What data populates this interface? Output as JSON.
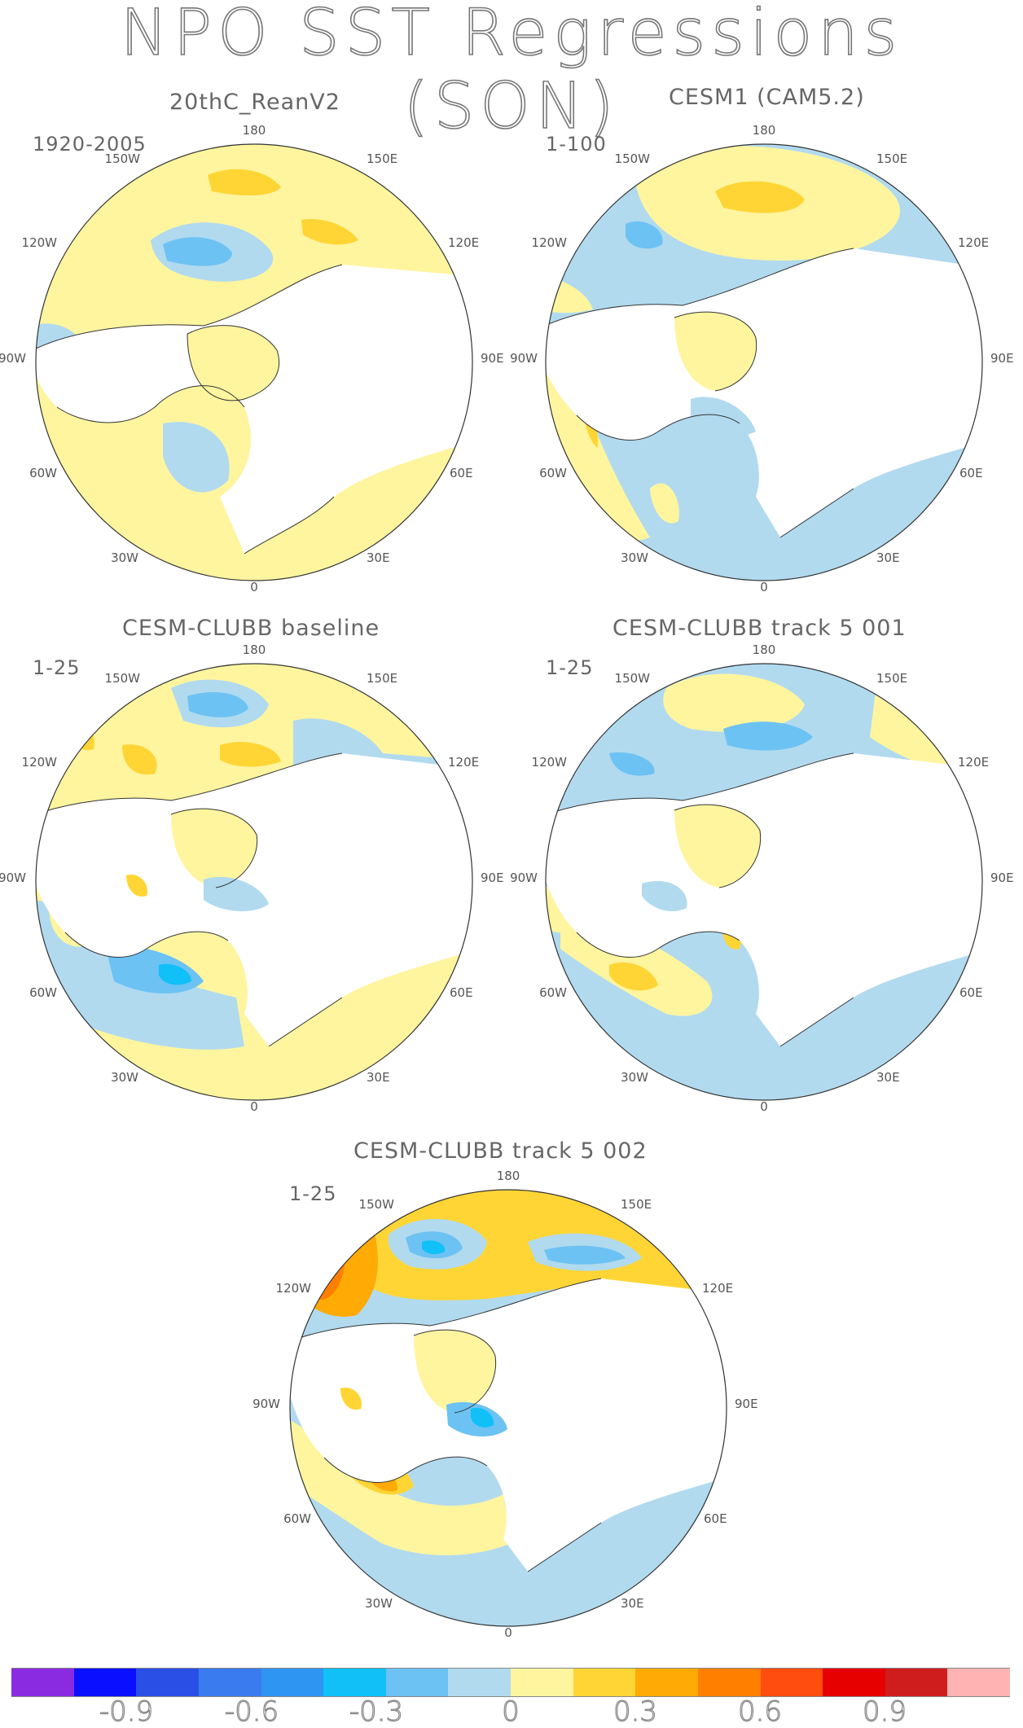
{
  "title": "NPO SST Regressions (SON)",
  "panels": [
    {
      "title": "20thC_ReanV2",
      "period": "1920-2005"
    },
    {
      "title": "CESM1 (CAM5.2)",
      "period": "1-100"
    },
    {
      "title": "CESM-CLUBB baseline",
      "period": "1-25"
    },
    {
      "title": "CESM-CLUBB track 5 001",
      "period": "1-25"
    },
    {
      "title": "CESM-CLUBB track 5 002",
      "period": "1-25"
    }
  ],
  "longitude_labels": {
    "n180": "180",
    "e150": "150E",
    "e120": "120E",
    "e90": "90E",
    "e60": "60E",
    "e30": "30E",
    "zero": "0",
    "w30": "30W",
    "w60": "60W",
    "w90": "90W",
    "w120": "120W",
    "w150": "150W"
  },
  "colorbar": {
    "colors": [
      "#8a2be2",
      "#0a10ff",
      "#2a4fe6",
      "#3a7bef",
      "#2f95f2",
      "#10c0f7",
      "#6cc2f3",
      "#b1daef",
      "#fff59f",
      "#ffd535",
      "#ffaa05",
      "#ff7f00",
      "#ff4c0f",
      "#e60000",
      "#cf1d1d",
      "#ffb3b3"
    ],
    "labels": [
      "-0.9",
      "-0.6",
      "-0.3",
      "0",
      "0.3",
      "0.6",
      "0.9"
    ]
  },
  "palette": {
    "yellow": "#fff59f",
    "lightblue": "#b1daef",
    "midblue": "#6cc2f3",
    "gold": "#ffd535",
    "orange": "#ffaa05",
    "darkorange": "#ff7f00",
    "cyan": "#10c0f7"
  }
}
